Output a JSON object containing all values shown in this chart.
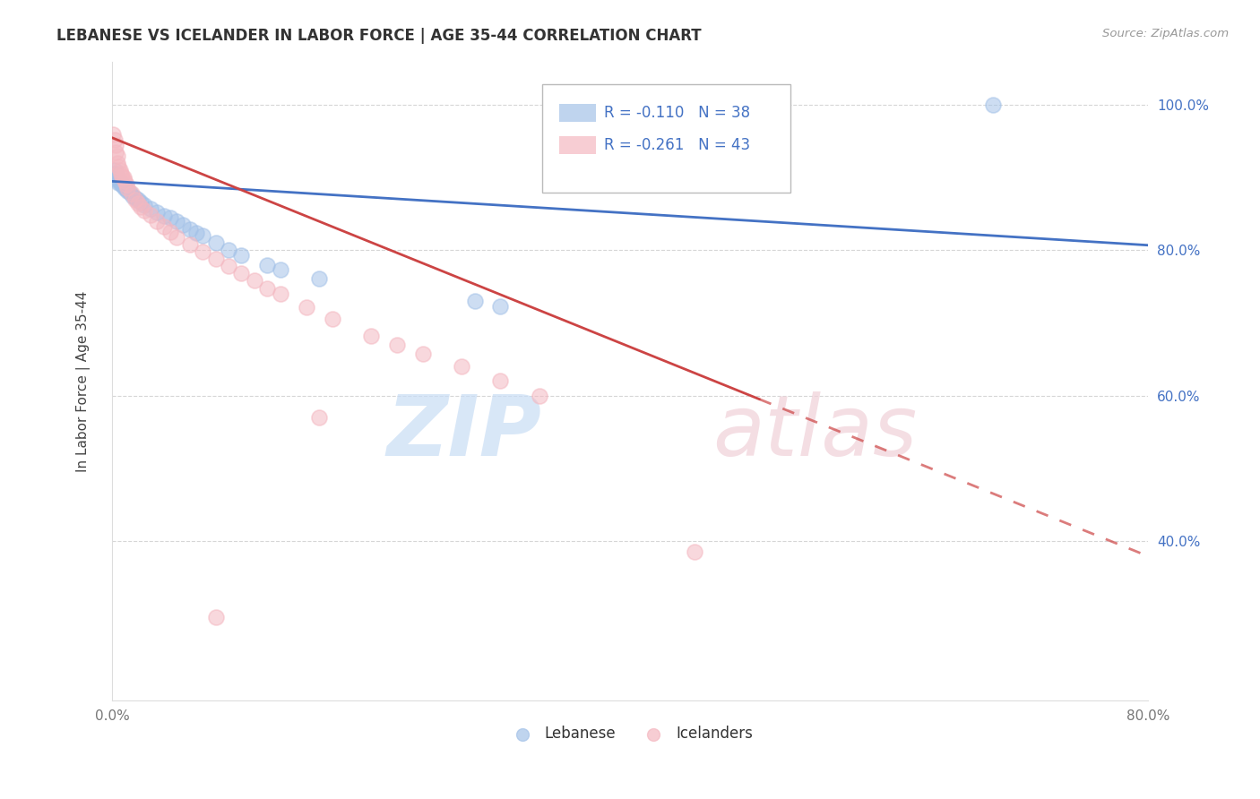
{
  "title": "LEBANESE VS ICELANDER IN LABOR FORCE | AGE 35-44 CORRELATION CHART",
  "source": "Source: ZipAtlas.com",
  "ylabel": "In Labor Force | Age 35-44",
  "x_min": 0.0,
  "x_max": 0.8,
  "y_min": 0.18,
  "y_max": 1.06,
  "x_ticks": [
    0.0,
    0.8
  ],
  "x_tick_labels": [
    "0.0%",
    "80.0%"
  ],
  "y_ticks": [
    0.4,
    0.6,
    0.8,
    1.0
  ],
  "y_tick_labels": [
    "40.0%",
    "60.0%",
    "80.0%",
    "100.0%"
  ],
  "grid_color": "#cccccc",
  "background_color": "#ffffff",
  "legend_R_blue": "R = -0.110",
  "legend_N_blue": "N = 38",
  "legend_R_pink": "R = -0.261",
  "legend_N_pink": "N = 43",
  "blue_color": "#a4c2e8",
  "pink_color": "#f4b8c1",
  "line_blue": "#4472c4",
  "line_pink": "#cc4444",
  "text_color_blue": "#4472c4",
  "title_color": "#333333",
  "blue_scatter": [
    [
      0.001,
      0.905
    ],
    [
      0.002,
      0.91
    ],
    [
      0.003,
      0.905
    ],
    [
      0.003,
      0.9
    ],
    [
      0.004,
      0.9
    ],
    [
      0.004,
      0.897
    ],
    [
      0.005,
      0.893
    ],
    [
      0.005,
      0.898
    ],
    [
      0.006,
      0.895
    ],
    [
      0.007,
      0.892
    ],
    [
      0.008,
      0.89
    ],
    [
      0.009,
      0.888
    ],
    [
      0.01,
      0.886
    ],
    [
      0.012,
      0.882
    ],
    [
      0.014,
      0.879
    ],
    [
      0.016,
      0.875
    ],
    [
      0.018,
      0.872
    ],
    [
      0.02,
      0.869
    ],
    [
      0.022,
      0.866
    ],
    [
      0.025,
      0.862
    ],
    [
      0.03,
      0.857
    ],
    [
      0.035,
      0.852
    ],
    [
      0.04,
      0.847
    ],
    [
      0.045,
      0.845
    ],
    [
      0.05,
      0.84
    ],
    [
      0.055,
      0.835
    ],
    [
      0.06,
      0.829
    ],
    [
      0.065,
      0.824
    ],
    [
      0.07,
      0.82
    ],
    [
      0.08,
      0.81
    ],
    [
      0.09,
      0.8
    ],
    [
      0.1,
      0.793
    ],
    [
      0.12,
      0.78
    ],
    [
      0.13,
      0.773
    ],
    [
      0.16,
      0.761
    ],
    [
      0.28,
      0.73
    ],
    [
      0.3,
      0.723
    ],
    [
      0.68,
      1.0
    ]
  ],
  "pink_scatter": [
    [
      0.001,
      0.96
    ],
    [
      0.002,
      0.952
    ],
    [
      0.003,
      0.945
    ],
    [
      0.003,
      0.935
    ],
    [
      0.004,
      0.93
    ],
    [
      0.004,
      0.92
    ],
    [
      0.005,
      0.915
    ],
    [
      0.006,
      0.91
    ],
    [
      0.007,
      0.905
    ],
    [
      0.008,
      0.902
    ],
    [
      0.009,
      0.9
    ],
    [
      0.01,
      0.895
    ],
    [
      0.011,
      0.89
    ],
    [
      0.012,
      0.886
    ],
    [
      0.015,
      0.878
    ],
    [
      0.018,
      0.87
    ],
    [
      0.02,
      0.865
    ],
    [
      0.022,
      0.86
    ],
    [
      0.025,
      0.855
    ],
    [
      0.03,
      0.848
    ],
    [
      0.035,
      0.84
    ],
    [
      0.04,
      0.832
    ],
    [
      0.045,
      0.825
    ],
    [
      0.05,
      0.818
    ],
    [
      0.06,
      0.808
    ],
    [
      0.07,
      0.798
    ],
    [
      0.08,
      0.788
    ],
    [
      0.09,
      0.778
    ],
    [
      0.1,
      0.768
    ],
    [
      0.11,
      0.758
    ],
    [
      0.12,
      0.748
    ],
    [
      0.13,
      0.74
    ],
    [
      0.15,
      0.722
    ],
    [
      0.17,
      0.706
    ],
    [
      0.2,
      0.682
    ],
    [
      0.22,
      0.67
    ],
    [
      0.24,
      0.658
    ],
    [
      0.27,
      0.64
    ],
    [
      0.3,
      0.62
    ],
    [
      0.33,
      0.6
    ],
    [
      0.16,
      0.57
    ],
    [
      0.45,
      0.385
    ],
    [
      0.08,
      0.295
    ]
  ],
  "pink_line_solid_end": 0.5,
  "blue_line_intercept": 0.895,
  "blue_line_slope": -0.11,
  "pink_line_intercept": 0.955,
  "pink_line_slope": -0.72
}
